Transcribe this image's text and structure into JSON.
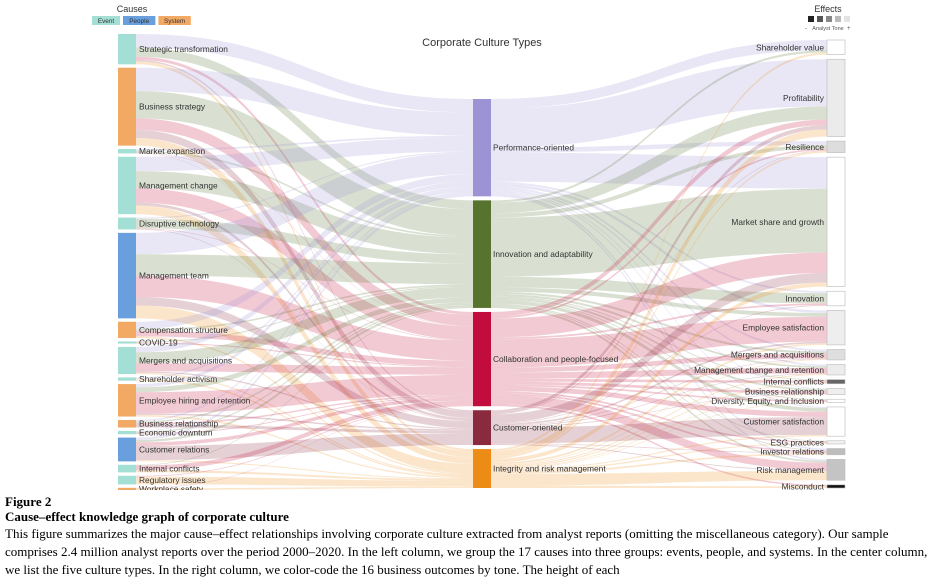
{
  "diagram": {
    "title": "Corporate Culture Types",
    "causes_heading": "Causes",
    "effects_heading": "Effects",
    "cause_groups": [
      {
        "label": "Event",
        "color": "#a3dfd4"
      },
      {
        "label": "People",
        "color": "#6a9fdd"
      },
      {
        "label": "System",
        "color": "#f2a964"
      }
    ],
    "tone_legend": {
      "minus": "-",
      "label": "Analyst Tone",
      "plus": "+",
      "swatches": [
        "#222222",
        "#555555",
        "#888888",
        "#bbbbbb",
        "#e3e3e3"
      ]
    },
    "causes": [
      {
        "label": "Strategic transformation",
        "group": "Event",
        "weight": 28
      },
      {
        "label": "Business strategy",
        "group": "System",
        "weight": 72
      },
      {
        "label": "Market expansion",
        "group": "Event",
        "weight": 4
      },
      {
        "label": "Management change",
        "group": "Event",
        "weight": 53
      },
      {
        "label": "Disruptive technology",
        "group": "Event",
        "weight": 11
      },
      {
        "label": "Management team",
        "group": "People",
        "weight": 79
      },
      {
        "label": "Compensation structure",
        "group": "System",
        "weight": 15
      },
      {
        "label": "COVID-19",
        "group": "Event",
        "weight": 2
      },
      {
        "label": "Mergers and acquisitions",
        "group": "Event",
        "weight": 25
      },
      {
        "label": "Shareholder activism",
        "group": "Event",
        "weight": 3
      },
      {
        "label": "Employee hiring and retention",
        "group": "System",
        "weight": 30
      },
      {
        "label": "Business relationship",
        "group": "System",
        "weight": 7
      },
      {
        "label": "Economic downturn",
        "group": "Event",
        "weight": 3
      },
      {
        "label": "Customer relations",
        "group": "People",
        "weight": 22
      },
      {
        "label": "Internal conflicts",
        "group": "Event",
        "weight": 7
      },
      {
        "label": "Regulatory issues",
        "group": "Event",
        "weight": 8
      },
      {
        "label": "Workplace safety",
        "group": "System",
        "weight": 2
      }
    ],
    "culture_types": [
      {
        "label": "Performance-oriented",
        "color": "#9c93d4",
        "weight": 95
      },
      {
        "label": "Innovation and adaptability",
        "color": "#57742f",
        "weight": 105
      },
      {
        "label": "Collaboration and people-focused",
        "color": "#c20c3d",
        "weight": 92
      },
      {
        "label": "Customer-oriented",
        "color": "#8a2a3e",
        "weight": 34
      },
      {
        "label": "Integrity and risk management",
        "color": "#ec8c17",
        "weight": 38
      }
    ],
    "effects": [
      {
        "label": "Shareholder value",
        "tone": "#ffffff",
        "weight": 14
      },
      {
        "label": "Profitability",
        "tone": "#ebebeb",
        "weight": 74
      },
      {
        "label": "Resilience",
        "tone": "#dddddd",
        "weight": 11
      },
      {
        "label": "Market share and growth",
        "tone": "#ffffff",
        "weight": 124
      },
      {
        "label": "Innovation",
        "tone": "#ffffff",
        "weight": 14
      },
      {
        "label": "Employee satisfaction",
        "tone": "#eeeeee",
        "weight": 33
      },
      {
        "label": "Mergers and acquisitions",
        "tone": "#dedede",
        "weight": 10
      },
      {
        "label": "Management change and retention",
        "tone": "#ececec",
        "weight": 10
      },
      {
        "label": "Internal conflicts",
        "tone": "#666666",
        "weight": 4
      },
      {
        "label": "Business relationship",
        "tone": "#eeeeee",
        "weight": 6
      },
      {
        "label": "Diversity, Equity, and Inclusion",
        "tone": "#ffffff",
        "weight": 3
      },
      {
        "label": "Customer satisfaction",
        "tone": "#ffffff",
        "weight": 28
      },
      {
        "label": "ESG practices",
        "tone": "#f2f2f2",
        "weight": 3
      },
      {
        "label": "Investor relations",
        "tone": "#bdbdbd",
        "weight": 6
      },
      {
        "label": "Risk management",
        "tone": "#c4c4c4",
        "weight": 20
      },
      {
        "label": "Misconduct",
        "tone": "#111111",
        "weight": 3
      }
    ]
  },
  "caption": {
    "figure_number": "Figure 2",
    "title": "Cause–effect knowledge graph of corporate culture",
    "body": "This figure summarizes the major cause–effect relationships involving corporate culture extracted from analyst reports (omitting the miscellaneous category). Our sample comprises 2.4 million analyst reports over the period 2000–2020. In the left column, we group the 17 causes into three groups: events, people, and systems. In the center column, we list the five culture types. In the right column, we color-code the 16 business outcomes by tone. The height of each"
  }
}
